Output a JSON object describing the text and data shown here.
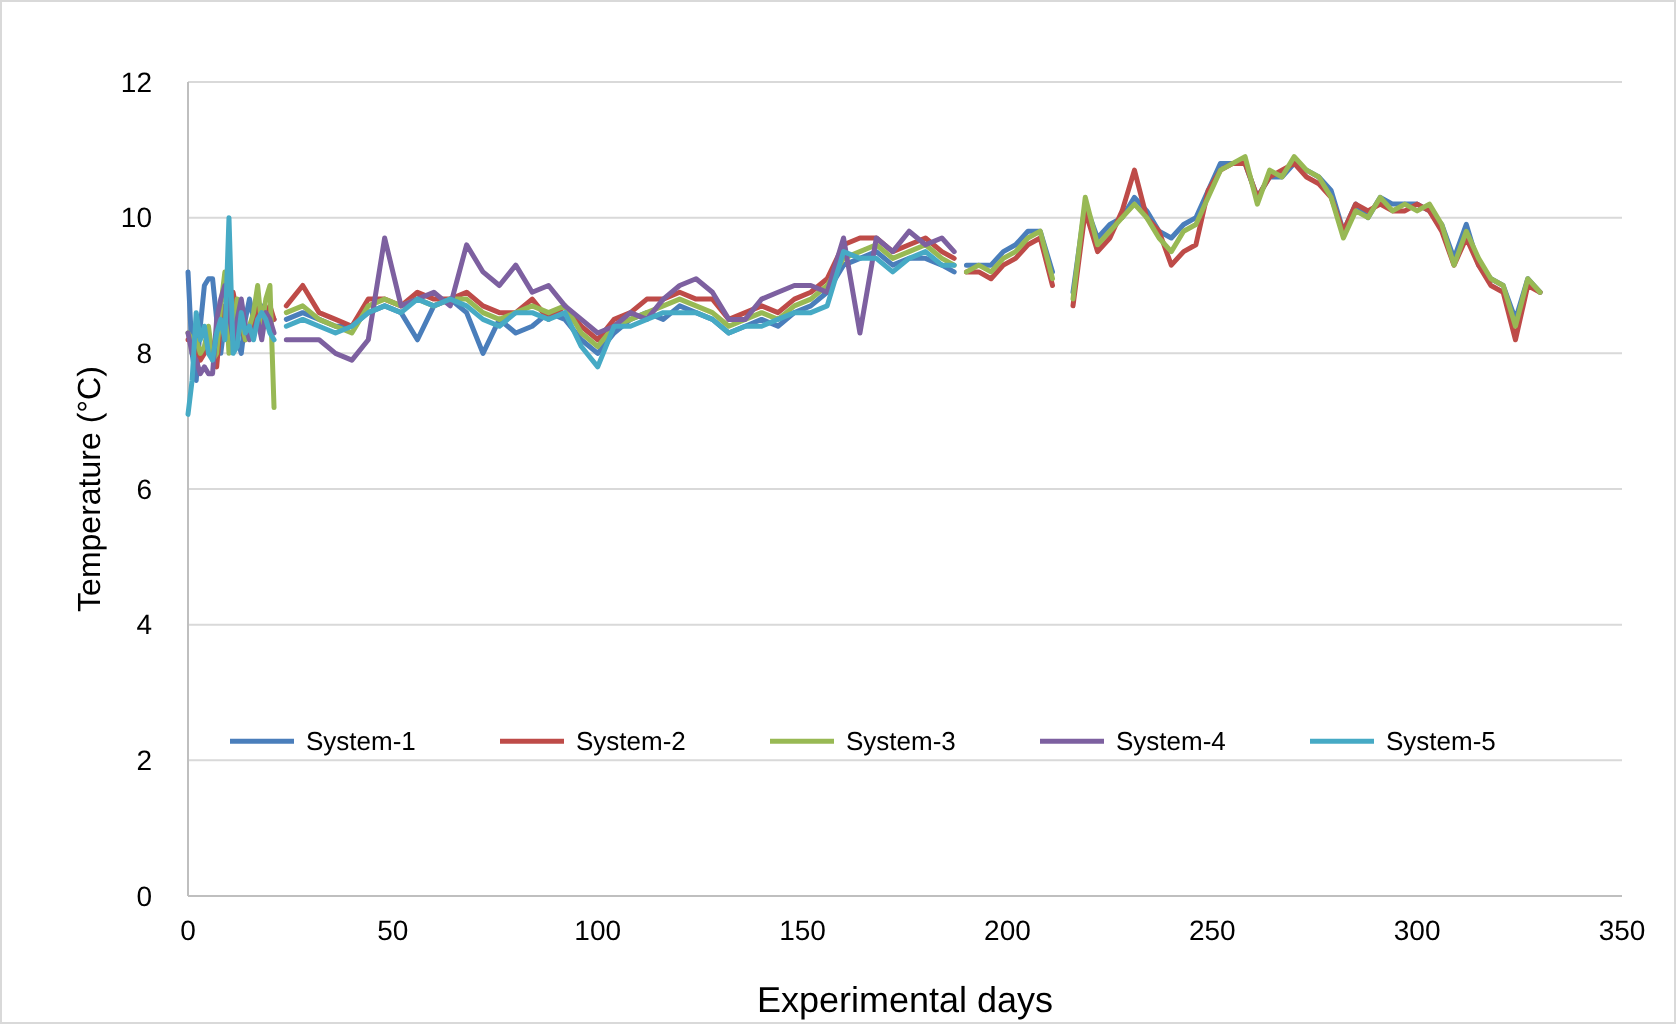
{
  "chart_data": {
    "type": "line",
    "xlabel": "Experimental days",
    "ylabel": "Temperature (°C)",
    "xlim": [
      0,
      350
    ],
    "xticks": [
      0,
      50,
      100,
      150,
      200,
      250,
      300,
      350
    ],
    "ylim": [
      0,
      12
    ],
    "yticks": [
      0,
      2,
      4,
      6,
      8,
      10,
      12
    ],
    "grid": "y",
    "legend": "bottom",
    "marker": "none",
    "line_style": "solid",
    "series": [
      {
        "name": "System-1",
        "color": "#4a7ebb",
        "x": [
          0,
          1,
          2,
          3,
          4,
          5,
          6,
          7,
          8,
          9,
          10,
          11,
          12,
          13,
          14,
          15,
          16,
          17,
          18,
          19,
          20,
          21,
          null,
          null,
          24,
          28,
          32,
          36,
          40,
          44,
          48,
          52,
          56,
          60,
          64,
          68,
          72,
          76,
          80,
          84,
          88,
          92,
          96,
          100,
          104,
          108,
          112,
          116,
          120,
          124,
          128,
          132,
          136,
          140,
          144,
          148,
          152,
          156,
          160,
          164,
          168,
          172,
          176,
          180,
          184,
          187,
          null,
          190,
          193,
          196,
          199,
          202,
          205,
          208,
          211,
          null,
          216,
          219,
          222,
          225,
          228,
          231,
          234,
          237,
          240,
          243,
          246,
          249,
          252,
          255,
          258,
          261,
          264,
          267,
          270,
          273,
          276,
          279,
          282,
          285,
          288,
          291,
          294,
          297,
          300,
          303,
          306,
          309,
          312,
          315,
          318,
          321,
          324,
          327,
          330
        ],
        "values": [
          9.2,
          8.0,
          7.6,
          8.4,
          9.0,
          9.1,
          9.1,
          8.5,
          8.0,
          8.5,
          8.6,
          8.7,
          8.2,
          8.0,
          8.5,
          8.8,
          8.5,
          8.6,
          8.7,
          8.5,
          8.6,
          8.5,
          null,
          null,
          8.5,
          8.6,
          8.5,
          8.4,
          8.4,
          8.6,
          8.7,
          8.6,
          8.2,
          8.7,
          8.8,
          8.6,
          8.0,
          8.5,
          8.3,
          8.4,
          8.6,
          8.5,
          8.2,
          8.0,
          8.3,
          8.5,
          8.6,
          8.5,
          8.7,
          8.6,
          8.5,
          8.3,
          8.4,
          8.5,
          8.4,
          8.6,
          8.7,
          8.9,
          9.3,
          9.4,
          9.5,
          9.3,
          9.4,
          9.4,
          9.3,
          9.2,
          null,
          9.3,
          9.3,
          9.3,
          9.5,
          9.6,
          9.8,
          9.8,
          9.2,
          null,
          8.9,
          10.2,
          9.7,
          9.9,
          10.0,
          10.3,
          10.1,
          9.8,
          9.7,
          9.9,
          10.0,
          10.4,
          10.8,
          10.8,
          10.8,
          10.3,
          10.6,
          10.6,
          10.8,
          10.7,
          10.6,
          10.4,
          9.8,
          10.2,
          10.0,
          10.3,
          10.2,
          10.2,
          10.2,
          10.1,
          9.9,
          9.4,
          9.9,
          9.3,
          9.1,
          9.0,
          8.5,
          9.1,
          8.9
        ]
      },
      {
        "name": "System-2",
        "color": "#be4b48",
        "x": [
          0,
          1,
          2,
          3,
          4,
          5,
          6,
          7,
          8,
          9,
          10,
          11,
          12,
          13,
          14,
          15,
          16,
          17,
          18,
          19,
          20,
          21,
          null,
          null,
          24,
          28,
          32,
          36,
          40,
          44,
          48,
          52,
          56,
          60,
          64,
          68,
          72,
          76,
          80,
          84,
          88,
          92,
          96,
          100,
          104,
          108,
          112,
          116,
          120,
          124,
          128,
          132,
          136,
          140,
          144,
          148,
          152,
          156,
          160,
          164,
          168,
          172,
          176,
          180,
          184,
          187,
          null,
          190,
          193,
          196,
          199,
          202,
          205,
          208,
          211,
          null,
          216,
          219,
          222,
          225,
          228,
          231,
          234,
          237,
          240,
          243,
          246,
          249,
          252,
          255,
          258,
          261,
          264,
          267,
          270,
          273,
          276,
          279,
          282,
          285,
          288,
          291,
          294,
          297,
          300,
          303,
          306,
          309,
          312,
          315,
          318,
          321,
          324,
          327,
          330
        ],
        "values": [
          8.2,
          8.2,
          8.1,
          7.9,
          8.0,
          8.3,
          8.0,
          7.8,
          8.5,
          8.7,
          8.2,
          8.9,
          8.6,
          8.4,
          8.2,
          8.3,
          8.5,
          8.7,
          8.5,
          8.6,
          8.7,
          8.5,
          null,
          null,
          8.7,
          9.0,
          8.6,
          8.5,
          8.4,
          8.8,
          8.8,
          8.7,
          8.9,
          8.8,
          8.8,
          8.9,
          8.7,
          8.6,
          8.6,
          8.8,
          8.5,
          8.7,
          8.4,
          8.2,
          8.5,
          8.6,
          8.8,
          8.8,
          8.9,
          8.8,
          8.8,
          8.5,
          8.6,
          8.7,
          8.6,
          8.8,
          8.9,
          9.1,
          9.6,
          9.7,
          9.7,
          9.5,
          9.6,
          9.7,
          9.5,
          9.4,
          null,
          9.2,
          9.2,
          9.1,
          9.3,
          9.4,
          9.6,
          9.7,
          9.0,
          null,
          8.7,
          10.1,
          9.5,
          9.7,
          10.1,
          10.7,
          10.0,
          9.8,
          9.3,
          9.5,
          9.6,
          10.4,
          10.7,
          10.8,
          10.8,
          10.3,
          10.6,
          10.7,
          10.8,
          10.6,
          10.5,
          10.3,
          9.8,
          10.2,
          10.1,
          10.2,
          10.1,
          10.1,
          10.2,
          10.1,
          9.8,
          9.3,
          9.7,
          9.3,
          9.0,
          8.9,
          8.2,
          9.0,
          8.9
        ]
      },
      {
        "name": "System-3",
        "color": "#98b954",
        "x": [
          0,
          1,
          2,
          3,
          4,
          5,
          6,
          7,
          8,
          9,
          10,
          11,
          12,
          13,
          14,
          15,
          16,
          17,
          18,
          19,
          20,
          21,
          null,
          null,
          24,
          28,
          32,
          36,
          40,
          44,
          48,
          52,
          56,
          60,
          64,
          68,
          72,
          76,
          80,
          84,
          88,
          92,
          96,
          100,
          104,
          108,
          112,
          116,
          120,
          124,
          128,
          132,
          136,
          140,
          144,
          148,
          152,
          156,
          160,
          164,
          168,
          172,
          176,
          180,
          184,
          187,
          null,
          190,
          193,
          196,
          199,
          202,
          205,
          208,
          211,
          null,
          216,
          219,
          222,
          225,
          228,
          231,
          234,
          237,
          240,
          243,
          246,
          249,
          252,
          255,
          258,
          261,
          264,
          267,
          270,
          273,
          276,
          279,
          282,
          285,
          288,
          291,
          294,
          297,
          300,
          303,
          306,
          309,
          312,
          315,
          318,
          321,
          324,
          327,
          330
        ],
        "values": [
          8.3,
          8.2,
          8.2,
          8.0,
          8.1,
          8.4,
          7.9,
          8.0,
          8.7,
          9.2,
          8.0,
          8.3,
          8.8,
          8.5,
          8.2,
          8.4,
          8.6,
          9.0,
          8.4,
          8.8,
          9.0,
          7.2,
          null,
          null,
          8.6,
          8.7,
          8.5,
          8.4,
          8.3,
          8.7,
          8.8,
          8.7,
          8.8,
          8.7,
          8.8,
          8.8,
          8.6,
          8.5,
          8.6,
          8.7,
          8.6,
          8.7,
          8.3,
          8.1,
          8.4,
          8.5,
          8.6,
          8.7,
          8.8,
          8.7,
          8.6,
          8.4,
          8.5,
          8.6,
          8.5,
          8.7,
          8.8,
          9.0,
          9.4,
          9.5,
          9.6,
          9.4,
          9.5,
          9.6,
          9.4,
          9.3,
          null,
          9.2,
          9.3,
          9.2,
          9.4,
          9.5,
          9.7,
          9.8,
          9.1,
          null,
          8.8,
          10.3,
          9.6,
          9.8,
          10.0,
          10.2,
          10.0,
          9.7,
          9.5,
          9.8,
          9.9,
          10.3,
          10.7,
          10.8,
          10.9,
          10.2,
          10.7,
          10.6,
          10.9,
          10.7,
          10.6,
          10.3,
          9.7,
          10.1,
          10.0,
          10.3,
          10.1,
          10.2,
          10.1,
          10.2,
          9.9,
          9.3,
          9.8,
          9.4,
          9.1,
          9.0,
          8.4,
          9.1,
          8.9
        ]
      },
      {
        "name": "System-4",
        "color": "#7d60a0",
        "x": [
          0,
          1,
          2,
          3,
          4,
          5,
          6,
          7,
          8,
          9,
          10,
          11,
          12,
          13,
          14,
          15,
          16,
          17,
          18,
          19,
          20,
          21,
          null,
          null,
          24,
          28,
          32,
          36,
          40,
          44,
          48,
          52,
          56,
          60,
          64,
          68,
          72,
          76,
          80,
          84,
          88,
          92,
          96,
          100,
          104,
          108,
          112,
          116,
          120,
          124,
          128,
          132,
          136,
          140,
          144,
          148,
          152,
          156,
          160,
          164,
          168,
          172,
          176,
          180,
          184,
          187
        ],
        "values": [
          8.3,
          8.0,
          7.9,
          7.7,
          7.8,
          7.7,
          7.7,
          8.5,
          8.8,
          9.0,
          8.6,
          8.2,
          8.5,
          8.8,
          8.4,
          8.2,
          8.3,
          8.5,
          8.2,
          8.6,
          8.5,
          8.3,
          null,
          null,
          8.2,
          8.2,
          8.2,
          8.0,
          7.9,
          8.2,
          9.7,
          8.7,
          8.8,
          8.9,
          8.7,
          9.6,
          9.2,
          9.0,
          9.3,
          8.9,
          9.0,
          8.7,
          8.5,
          8.3,
          8.4,
          8.6,
          8.5,
          8.8,
          9.0,
          9.1,
          8.9,
          8.5,
          8.5,
          8.8,
          8.9,
          9.0,
          9.0,
          8.9,
          9.7,
          8.3,
          9.7,
          9.5,
          9.8,
          9.6,
          9.7,
          9.5
        ]
      },
      {
        "name": "System-5",
        "color": "#46aac5",
        "x": [
          0,
          1,
          2,
          3,
          4,
          5,
          6,
          7,
          8,
          9,
          10,
          11,
          12,
          13,
          14,
          15,
          16,
          17,
          18,
          19,
          20,
          21,
          null,
          null,
          24,
          28,
          32,
          36,
          40,
          44,
          48,
          52,
          56,
          60,
          64,
          68,
          72,
          76,
          80,
          84,
          88,
          92,
          96,
          100,
          104,
          108,
          112,
          116,
          120,
          124,
          128,
          132,
          136,
          140,
          144,
          148,
          152,
          156,
          160,
          164,
          168,
          172,
          176,
          180,
          184,
          187
        ],
        "values": [
          7.1,
          7.6,
          8.6,
          8.2,
          8.4,
          8.0,
          7.9,
          8.3,
          8.5,
          8.2,
          10.0,
          8.0,
          8.1,
          8.6,
          8.3,
          8.4,
          8.2,
          8.5,
          8.6,
          8.5,
          8.3,
          8.2,
          null,
          null,
          8.4,
          8.5,
          8.4,
          8.3,
          8.4,
          8.6,
          8.7,
          8.6,
          8.8,
          8.7,
          8.8,
          8.7,
          8.5,
          8.4,
          8.6,
          8.6,
          8.5,
          8.6,
          8.1,
          7.8,
          8.4,
          8.4,
          8.5,
          8.6,
          8.6,
          8.6,
          8.5,
          8.3,
          8.4,
          8.4,
          8.5,
          8.6,
          8.6,
          8.7,
          9.5,
          9.4,
          9.4,
          9.2,
          9.4,
          9.5,
          9.3,
          9.3
        ]
      }
    ]
  }
}
